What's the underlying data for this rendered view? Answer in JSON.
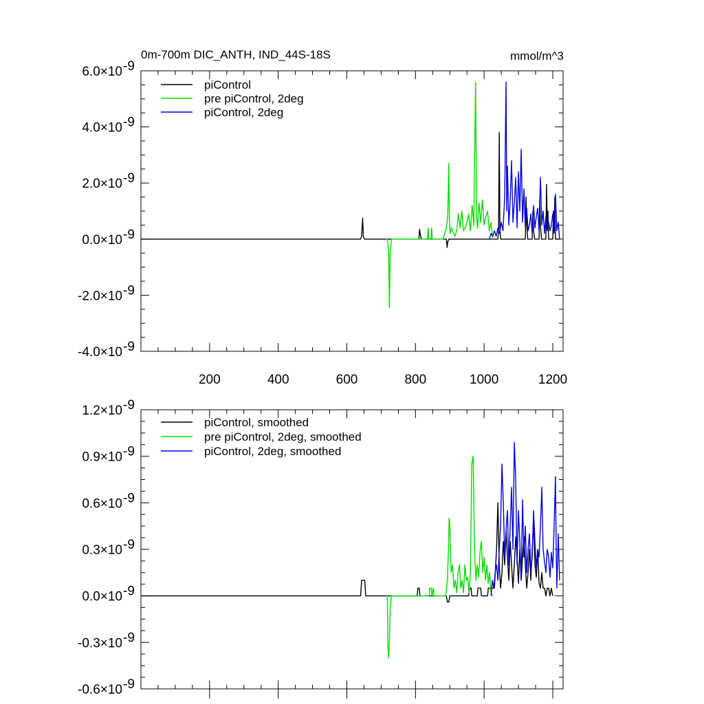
{
  "chart_data": [
    {
      "type": "line",
      "title_left": "0m-700m DIC_ANTH, IND_44S-18S",
      "title_right": "mmol/m^3",
      "xlim": [
        0,
        1230
      ],
      "ylim": [
        -4.0,
        6.0
      ],
      "y_multiplier": "×10",
      "y_exponent": "-9",
      "x_ticks": [
        200,
        400,
        600,
        800,
        1000,
        1200
      ],
      "x_tick_labels": [
        "200",
        "400",
        "600",
        "800",
        "1000",
        "1200"
      ],
      "y_ticks": [
        6.0,
        4.0,
        2.0,
        0.0,
        -2.0,
        -4.0
      ],
      "y_tick_labels": [
        "6.0",
        "4.0",
        "2.0",
        "0.0",
        "-2.0",
        "-4.0"
      ],
      "y_minor_step": 0.5,
      "legend_position": "top-left",
      "series": [
        {
          "name": "piControl",
          "color": "#000000",
          "x": [
            0,
            640,
            643,
            646,
            648,
            651,
            700,
            810,
            812,
            815,
            818,
            890,
            892,
            894,
            897,
            1040,
            1042,
            1044,
            1046,
            1048,
            1100,
            1120,
            1122,
            1124,
            1127,
            1140,
            1142,
            1144,
            1147,
            1160,
            1162,
            1164,
            1167,
            1180,
            1182,
            1184,
            1186,
            1188,
            1200,
            1202,
            1204,
            1206,
            1208,
            1220
          ],
          "y": [
            0,
            0,
            0.1,
            0.75,
            0.1,
            0,
            0,
            0,
            0.35,
            0.1,
            0,
            0,
            -0.3,
            -0.1,
            0,
            0,
            0.3,
            3.8,
            0.4,
            0,
            0,
            0,
            1.5,
            0.5,
            0,
            0,
            1.0,
            0.3,
            0,
            0,
            1.4,
            0.5,
            0,
            0,
            1.95,
            0.3,
            1.0,
            0,
            0,
            1.0,
            0.4,
            1.5,
            0,
            0
          ]
        },
        {
          "name": "pre piControl, 2deg",
          "color": "#00dd00",
          "x": [
            715,
            718,
            720,
            722,
            724,
            726,
            728,
            730,
            735,
            835,
            837,
            839,
            845,
            847,
            849,
            855,
            880,
            885,
            890,
            894,
            897,
            899,
            901,
            905,
            915,
            920,
            925,
            930,
            935,
            940,
            945,
            950,
            955,
            960,
            965,
            970,
            975,
            978,
            981,
            985,
            990,
            995,
            1000,
            1005,
            1010,
            1015,
            1020,
            1025
          ],
          "y": [
            0,
            0,
            -0.2,
            -0.6,
            -2.45,
            -0.5,
            -0.3,
            0,
            0,
            0,
            0.4,
            0,
            0,
            0.4,
            0,
            0,
            0,
            0.2,
            0.4,
            0.8,
            2.7,
            0.6,
            0.2,
            0.4,
            0.1,
            0.3,
            0.9,
            0.4,
            1.0,
            0.3,
            0.4,
            0.6,
            0.9,
            0.3,
            1.2,
            0.5,
            5.6,
            0.8,
            0.4,
            1.3,
            0.6,
            1.4,
            0.5,
            0.8,
            1.0,
            0.3,
            0.6,
            0
          ]
        },
        {
          "name": "piControl, 2deg",
          "color": "#0000dd",
          "x": [
            1015,
            1020,
            1025,
            1030,
            1035,
            1040,
            1045,
            1050,
            1055,
            1060,
            1064,
            1066,
            1068,
            1072,
            1076,
            1080,
            1084,
            1088,
            1092,
            1096,
            1100,
            1104,
            1108,
            1112,
            1116,
            1120,
            1124,
            1128,
            1132,
            1136,
            1140,
            1144,
            1148,
            1152,
            1156,
            1160,
            1164,
            1168,
            1172,
            1176,
            1180,
            1184,
            1188,
            1192,
            1196,
            1200,
            1204,
            1208,
            1212,
            1216,
            1220
          ],
          "y": [
            0,
            0.2,
            0.1,
            0.3,
            0.1,
            0.4,
            0.2,
            0.6,
            0.3,
            1.5,
            5.6,
            1.0,
            2.6,
            0.5,
            1.4,
            2.8,
            0.6,
            1.3,
            2.2,
            0.4,
            2.4,
            1.0,
            3.2,
            0.6,
            1.8,
            0.4,
            1.1,
            0.3,
            0.5,
            0.9,
            0.2,
            1.2,
            0.4,
            0.8,
            1.1,
            0.3,
            2.2,
            0.5,
            1.0,
            0.2,
            0.8,
            0.4,
            0.6,
            0.3,
            0.5,
            0.9,
            0.2,
            1.6,
            0.3,
            0.6,
            0
          ]
        }
      ]
    },
    {
      "type": "line",
      "xlim": [
        0,
        1230
      ],
      "ylim": [
        -0.6,
        1.2
      ],
      "y_multiplier": "×10",
      "y_exponent": "-9",
      "x_ticks": [
        200,
        400,
        600,
        800,
        1000,
        1200
      ],
      "y_ticks": [
        1.2,
        0.9,
        0.6,
        0.3,
        0.0,
        -0.3,
        -0.6
      ],
      "y_tick_labels": [
        "1.2",
        "0.9",
        "0.6",
        "0.3",
        "0.0",
        "-0.3",
        "-0.6"
      ],
      "y_minor_step": 0.075,
      "legend_position": "top-left",
      "series": [
        {
          "name": "piControl, smoothed",
          "color": "#000000",
          "x": [
            0,
            640,
            643,
            645,
            650,
            652,
            655,
            800,
            805,
            807,
            811,
            813,
            890,
            893,
            897,
            900,
            955,
            958,
            962,
            964,
            980,
            982,
            990,
            992,
            1010,
            1012,
            1030,
            1036,
            1040,
            1044,
            1048,
            1052,
            1056,
            1060,
            1064,
            1068,
            1072,
            1076,
            1080,
            1084,
            1088,
            1092,
            1096,
            1100,
            1104,
            1108,
            1112,
            1116,
            1120,
            1124,
            1128,
            1132,
            1136,
            1140,
            1144,
            1148,
            1152,
            1156,
            1160,
            1164,
            1168,
            1172,
            1176,
            1180,
            1184,
            1188,
            1192,
            1196,
            1200
          ],
          "y": [
            0,
            0,
            0.1,
            0.1,
            0.1,
            0.1,
            0,
            0,
            0,
            0.05,
            0.05,
            0,
            0,
            -0.04,
            -0.04,
            0,
            0,
            0.05,
            0.05,
            0,
            0,
            0.05,
            0.05,
            0,
            0,
            0.05,
            0.05,
            0.3,
            0.6,
            0.2,
            0.05,
            0.15,
            0.35,
            0.2,
            0.42,
            0.25,
            0.1,
            0.35,
            0.2,
            0.05,
            0.2,
            0.38,
            0.25,
            0.08,
            0.3,
            0.1,
            0.25,
            0.38,
            0.2,
            0.05,
            0.15,
            0.3,
            0.1,
            0.3,
            0.48,
            0.2,
            0.12,
            0.3,
            0.08,
            0.05,
            0.15,
            0.05,
            0.05,
            0,
            0.05,
            0.05,
            0,
            0.05,
            0
          ]
        },
        {
          "name": "pre piControl, 2deg, smoothed",
          "color": "#00dd00",
          "x": [
            715,
            718,
            720,
            722,
            724,
            726,
            728,
            730,
            735,
            840,
            842,
            846,
            848,
            852,
            854,
            885,
            888,
            890,
            893,
            896,
            898,
            900,
            904,
            908,
            912,
            916,
            920,
            924,
            928,
            932,
            936,
            940,
            944,
            948,
            952,
            956,
            960,
            964,
            968,
            972,
            976,
            980,
            984,
            988,
            992,
            996,
            1000,
            1004,
            1008,
            1012,
            1016,
            1020,
            1025
          ],
          "y": [
            0,
            0,
            -0.35,
            -0.4,
            -0.3,
            -0.1,
            -0.04,
            0,
            0,
            0,
            0.05,
            0.05,
            0,
            0.05,
            0,
            0,
            0,
            0.05,
            0.1,
            0.3,
            0.5,
            0.45,
            0.15,
            0.2,
            0.05,
            0.1,
            0.02,
            0.15,
            0.2,
            0.05,
            0.1,
            0.02,
            0.2,
            0.1,
            0.12,
            0.02,
            0.15,
            0.85,
            0.9,
            0.3,
            0.1,
            0.2,
            0.12,
            0.28,
            0.35,
            0.15,
            0.25,
            0.1,
            0.2,
            0.08,
            0.15,
            0.02,
            0
          ]
        },
        {
          "name": "piControl, 2deg, smoothed",
          "color": "#0000dd",
          "x": [
            1020,
            1024,
            1028,
            1032,
            1036,
            1040,
            1044,
            1048,
            1052,
            1056,
            1060,
            1064,
            1068,
            1072,
            1076,
            1080,
            1084,
            1088,
            1092,
            1096,
            1100,
            1104,
            1108,
            1112,
            1116,
            1120,
            1124,
            1128,
            1132,
            1136,
            1140,
            1144,
            1148,
            1152,
            1156,
            1160,
            1164,
            1168,
            1172,
            1176,
            1180,
            1184,
            1188,
            1192,
            1196,
            1200,
            1204,
            1208,
            1210,
            1212,
            1216,
            1220
          ],
          "y": [
            0,
            0.1,
            0.05,
            0.15,
            0.2,
            0.1,
            0.3,
            0.45,
            0.85,
            0.6,
            0.25,
            0.42,
            0.55,
            0.2,
            0.45,
            0.7,
            0.3,
            0.99,
            0.75,
            0.2,
            0.55,
            0.35,
            0.1,
            0.62,
            0.25,
            0.45,
            0.15,
            0.3,
            0.4,
            0.15,
            0.25,
            0.55,
            0.35,
            0.18,
            0.3,
            0.25,
            0.45,
            0.7,
            0.3,
            0.22,
            0.15,
            0.3,
            0.25,
            0.12,
            0.28,
            0.18,
            0.45,
            0.77,
            0.3,
            0.05,
            0.4,
            0.1
          ]
        }
      ]
    }
  ]
}
